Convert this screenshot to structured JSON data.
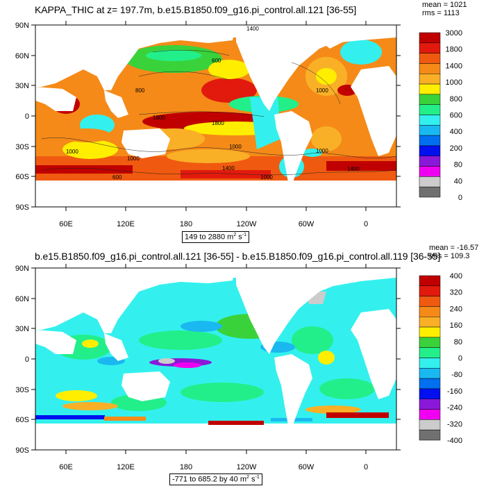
{
  "top": {
    "title": "KAPPA_THIC at z= 197.7m, b.e15.B1850.f09_g16.pi_control.all.121 [36-55]",
    "mean": "mean = 1021",
    "rms": "rms = 1113",
    "range_prefix": "149 to 2880 m",
    "range_sup": "2",
    "range_suffix": " s",
    "range_sup2": "-1",
    "lat_labels": [
      "90N",
      "60N",
      "30N",
      "0",
      "30S",
      "60S",
      "90S"
    ],
    "lon_labels": [
      "60E",
      "120E",
      "180",
      "120W",
      "60W",
      "0"
    ],
    "colorbar": {
      "labels": [
        "3000",
        "1800",
        "1400",
        "1000",
        "800",
        "600",
        "400",
        "200",
        "80",
        "40",
        "0"
      ],
      "colors": [
        "#c00000",
        "#e21a0d",
        "#f05a10",
        "#f58a18",
        "#f9b027",
        "#ffee00",
        "#3ad23a",
        "#22ef8a",
        "#33f0ee",
        "#1ab8f0",
        "#0070f0",
        "#0010ee",
        "#8a18d8",
        "#f000f0",
        "#cccccc",
        "#707070"
      ]
    },
    "contour_labels": [
      "1400",
      "1000",
      "1000",
      "600",
      "800",
      "1000",
      "1000",
      "1400",
      "1400",
      "1800",
      "1800",
      "600",
      "1000",
      "1000"
    ]
  },
  "bottom": {
    "title": "b.e15.B1850.f09_g16.pi_control.all.121 [36-55] - b.e15.B1850.f09_g16.pi_control.all.119 [36-55]",
    "mean": "mean = -16.57",
    "rms": "rms = 109.3",
    "range_prefix": "-771 to 685.2 by 40 m",
    "range_sup": "2",
    "range_suffix": " s",
    "range_sup2": "-1",
    "lat_labels": [
      "90N",
      "60N",
      "30N",
      "0",
      "30S",
      "60S",
      "90S"
    ],
    "lon_labels": [
      "60E",
      "120E",
      "180",
      "120W",
      "60W",
      "0"
    ],
    "colorbar": {
      "labels": [
        "400",
        "320",
        "240",
        "160",
        "80",
        "0",
        "-80",
        "-160",
        "-240",
        "-320",
        "-400"
      ],
      "colors": [
        "#c00000",
        "#e21a0d",
        "#f05a10",
        "#f58a18",
        "#f9b027",
        "#ffee00",
        "#3ad23a",
        "#22ef8a",
        "#33f0ee",
        "#1ab8f0",
        "#0070f0",
        "#0010ee",
        "#8a18d8",
        "#f000f0",
        "#cccccc",
        "#707070"
      ]
    }
  }
}
